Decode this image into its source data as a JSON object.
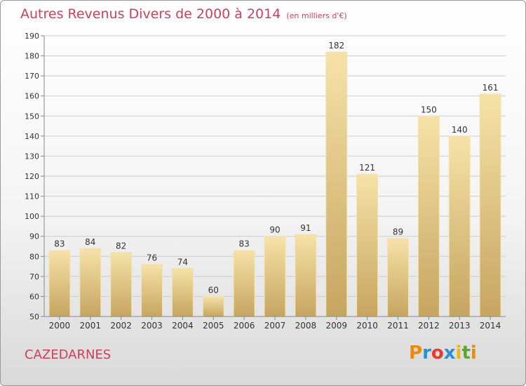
{
  "title": "Autres Revenus Divers de 2000 à 2014",
  "subtitle": "(en milliers d'€)",
  "place": "CAZEDARNES",
  "logo": {
    "letters": [
      "P",
      "r",
      "o",
      "x",
      "i",
      "t",
      "i"
    ],
    "colors": [
      "#f08a00",
      "#2a8fd6",
      "#e8392f",
      "#2a8fd6",
      "#f0b800",
      "#5aaa2a",
      "#f08a00"
    ]
  },
  "colors": {
    "title": "#d0405a",
    "bar": "#e6c883",
    "bar_light": "#f6e2a8",
    "bar_dark": "#c6a560",
    "grid": "#cccccc"
  },
  "chart_data": {
    "type": "bar",
    "title": "Autres Revenus Divers de 2000 à 2014",
    "subtitle": "(en milliers d'€)",
    "categories": [
      "2000",
      "2001",
      "2002",
      "2003",
      "2004",
      "2005",
      "2006",
      "2007",
      "2008",
      "2009",
      "2010",
      "2011",
      "2012",
      "2013",
      "2014"
    ],
    "values": [
      83,
      84,
      82,
      76,
      74,
      60,
      83,
      90,
      91,
      182,
      121,
      89,
      150,
      140,
      161
    ],
    "xlabel": "",
    "ylabel": "",
    "ylim": [
      50,
      190
    ],
    "yticks": [
      50,
      60,
      70,
      80,
      90,
      100,
      110,
      120,
      130,
      140,
      150,
      160,
      170,
      180,
      190
    ],
    "grid": true,
    "data_labels": true
  }
}
